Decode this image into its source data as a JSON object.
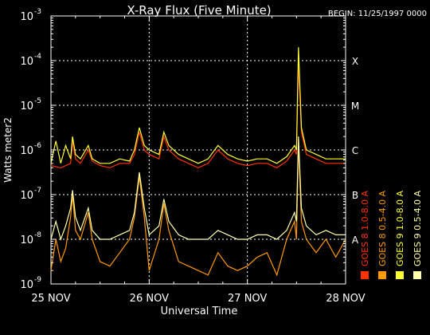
{
  "chart_data": {
    "type": "line",
    "title": "X-Ray Flux (Five Minute)",
    "begin_label": "BEGIN: 11/25/1997 0000",
    "xlabel": "Universal Time",
    "ylabel": "Watts meter2",
    "ylim_exponents": [
      -9,
      -3
    ],
    "y_ticks": [
      {
        "exp": -9,
        "base": "10",
        "sup": "-9"
      },
      {
        "exp": -8,
        "base": "10",
        "sup": "-8"
      },
      {
        "exp": -7,
        "base": "10",
        "sup": "-7"
      },
      {
        "exp": -6,
        "base": "10",
        "sup": "-6"
      },
      {
        "exp": -5,
        "base": "10",
        "sup": "-5"
      },
      {
        "exp": -4,
        "base": "10",
        "sup": "-4"
      },
      {
        "exp": -3,
        "base": "10",
        "sup": "-3"
      }
    ],
    "x_ticks": [
      "25 NOV",
      "26 NOV",
      "27 NOV",
      "28 NOV"
    ],
    "xlim_days": [
      0,
      3
    ],
    "flare_classes": [
      {
        "label": "A",
        "exp": -8
      },
      {
        "label": "B",
        "exp": -7
      },
      {
        "label": "C",
        "exp": -6
      },
      {
        "label": "M",
        "exp": -5
      },
      {
        "label": "X",
        "exp": -4
      }
    ],
    "grid": true,
    "legend_position": "right",
    "series": [
      {
        "name": "GOES 8 1.0-8.0 A",
        "color": "#ff3300",
        "style": "line",
        "points": [
          [
            0,
            -6.35
          ],
          [
            0.1,
            -6.4
          ],
          [
            0.2,
            -6.3
          ],
          [
            0.22,
            -5.8
          ],
          [
            0.25,
            -6.2
          ],
          [
            0.3,
            -6.3
          ],
          [
            0.38,
            -6.0
          ],
          [
            0.42,
            -6.25
          ],
          [
            0.5,
            -6.35
          ],
          [
            0.6,
            -6.4
          ],
          [
            0.7,
            -6.3
          ],
          [
            0.8,
            -6.3
          ],
          [
            0.85,
            -6.1
          ],
          [
            0.9,
            -5.6
          ],
          [
            0.95,
            -6.0
          ],
          [
            1.0,
            -6.1
          ],
          [
            1.1,
            -6.2
          ],
          [
            1.15,
            -5.7
          ],
          [
            1.2,
            -6.0
          ],
          [
            1.3,
            -6.2
          ],
          [
            1.4,
            -6.3
          ],
          [
            1.5,
            -6.4
          ],
          [
            1.6,
            -6.3
          ],
          [
            1.7,
            -6.0
          ],
          [
            1.8,
            -6.2
          ],
          [
            1.9,
            -6.3
          ],
          [
            2.0,
            -6.35
          ],
          [
            2.1,
            -6.3
          ],
          [
            2.2,
            -6.3
          ],
          [
            2.3,
            -6.4
          ],
          [
            2.4,
            -6.25
          ],
          [
            2.48,
            -6.0
          ],
          [
            2.5,
            -6.1
          ],
          [
            2.52,
            -4.0
          ],
          [
            2.55,
            -5.6
          ],
          [
            2.6,
            -6.1
          ],
          [
            2.7,
            -6.2
          ],
          [
            2.8,
            -6.3
          ],
          [
            2.9,
            -6.3
          ],
          [
            3.0,
            -6.3
          ]
        ]
      },
      {
        "name": "GOES 8 0.5-4.0 A",
        "color": "#ff9900",
        "style": "line",
        "points": [
          [
            0,
            -8.7
          ],
          [
            0.05,
            -8.0
          ],
          [
            0.1,
            -8.5
          ],
          [
            0.15,
            -8.2
          ],
          [
            0.2,
            -7.5
          ],
          [
            0.22,
            -7.0
          ],
          [
            0.25,
            -7.8
          ],
          [
            0.3,
            -8.0
          ],
          [
            0.38,
            -7.4
          ],
          [
            0.42,
            -8.0
          ],
          [
            0.5,
            -8.5
          ],
          [
            0.6,
            -8.6
          ],
          [
            0.7,
            -8.3
          ],
          [
            0.8,
            -8.0
          ],
          [
            0.85,
            -7.5
          ],
          [
            0.9,
            -6.6
          ],
          [
            0.95,
            -7.5
          ],
          [
            1.0,
            -8.7
          ],
          [
            1.1,
            -8.0
          ],
          [
            1.15,
            -7.2
          ],
          [
            1.2,
            -7.8
          ],
          [
            1.3,
            -8.5
          ],
          [
            1.4,
            -8.6
          ],
          [
            1.5,
            -8.7
          ],
          [
            1.6,
            -8.8
          ],
          [
            1.7,
            -8.3
          ],
          [
            1.8,
            -8.6
          ],
          [
            1.9,
            -8.7
          ],
          [
            2.0,
            -8.6
          ],
          [
            2.1,
            -8.4
          ],
          [
            2.2,
            -8.3
          ],
          [
            2.3,
            -8.8
          ],
          [
            2.4,
            -8.0
          ],
          [
            2.48,
            -7.6
          ],
          [
            2.5,
            -8.0
          ],
          [
            2.52,
            -5.8
          ],
          [
            2.55,
            -7.6
          ],
          [
            2.6,
            -8.0
          ],
          [
            2.7,
            -8.3
          ],
          [
            2.8,
            -8.0
          ],
          [
            2.9,
            -8.4
          ],
          [
            3.0,
            -8.0
          ]
        ]
      },
      {
        "name": "GOES 9 1.0-8.0 A",
        "color": "#ffff33",
        "style": "line",
        "points": [
          [
            0,
            -6.3
          ],
          [
            0.05,
            -5.8
          ],
          [
            0.1,
            -6.3
          ],
          [
            0.15,
            -5.9
          ],
          [
            0.2,
            -6.2
          ],
          [
            0.22,
            -5.7
          ],
          [
            0.25,
            -6.1
          ],
          [
            0.3,
            -6.2
          ],
          [
            0.38,
            -5.9
          ],
          [
            0.42,
            -6.2
          ],
          [
            0.5,
            -6.3
          ],
          [
            0.6,
            -6.3
          ],
          [
            0.7,
            -6.2
          ],
          [
            0.8,
            -6.25
          ],
          [
            0.85,
            -6.0
          ],
          [
            0.9,
            -5.5
          ],
          [
            0.95,
            -5.9
          ],
          [
            1.0,
            -6.0
          ],
          [
            1.1,
            -6.1
          ],
          [
            1.15,
            -5.6
          ],
          [
            1.2,
            -5.9
          ],
          [
            1.3,
            -6.1
          ],
          [
            1.4,
            -6.2
          ],
          [
            1.5,
            -6.3
          ],
          [
            1.6,
            -6.2
          ],
          [
            1.7,
            -5.9
          ],
          [
            1.8,
            -6.1
          ],
          [
            1.9,
            -6.2
          ],
          [
            2.0,
            -6.25
          ],
          [
            2.1,
            -6.2
          ],
          [
            2.2,
            -6.2
          ],
          [
            2.3,
            -6.3
          ],
          [
            2.4,
            -6.15
          ],
          [
            2.48,
            -5.9
          ],
          [
            2.5,
            -6.0
          ],
          [
            2.52,
            -3.7
          ],
          [
            2.55,
            -5.5
          ],
          [
            2.6,
            -6.0
          ],
          [
            2.7,
            -6.1
          ],
          [
            2.8,
            -6.2
          ],
          [
            2.9,
            -6.2
          ],
          [
            3.0,
            -6.2
          ]
        ]
      },
      {
        "name": "GOES 9 0.5-4.0 A",
        "color": "#ffffaa",
        "style": "line",
        "points": [
          [
            0,
            -8.0
          ],
          [
            0.05,
            -7.6
          ],
          [
            0.1,
            -8.0
          ],
          [
            0.15,
            -7.7
          ],
          [
            0.2,
            -7.3
          ],
          [
            0.22,
            -6.9
          ],
          [
            0.25,
            -7.5
          ],
          [
            0.3,
            -7.8
          ],
          [
            0.38,
            -7.3
          ],
          [
            0.42,
            -7.8
          ],
          [
            0.5,
            -8.0
          ],
          [
            0.6,
            -8.0
          ],
          [
            0.7,
            -7.9
          ],
          [
            0.8,
            -7.8
          ],
          [
            0.85,
            -7.4
          ],
          [
            0.9,
            -6.5
          ],
          [
            0.95,
            -7.3
          ],
          [
            1.0,
            -7.9
          ],
          [
            1.1,
            -7.7
          ],
          [
            1.15,
            -7.1
          ],
          [
            1.2,
            -7.6
          ],
          [
            1.3,
            -7.9
          ],
          [
            1.4,
            -8.0
          ],
          [
            1.5,
            -8.0
          ],
          [
            1.6,
            -8.0
          ],
          [
            1.7,
            -7.8
          ],
          [
            1.8,
            -7.9
          ],
          [
            1.9,
            -8.0
          ],
          [
            2.0,
            -8.0
          ],
          [
            2.1,
            -7.9
          ],
          [
            2.2,
            -7.9
          ],
          [
            2.3,
            -8.0
          ],
          [
            2.4,
            -7.8
          ],
          [
            2.48,
            -7.4
          ],
          [
            2.5,
            -7.6
          ],
          [
            2.52,
            -5.7
          ],
          [
            2.55,
            -7.3
          ],
          [
            2.6,
            -7.7
          ],
          [
            2.7,
            -7.9
          ],
          [
            2.8,
            -7.8
          ],
          [
            2.9,
            -7.9
          ],
          [
            3.0,
            -7.9
          ]
        ]
      }
    ]
  }
}
